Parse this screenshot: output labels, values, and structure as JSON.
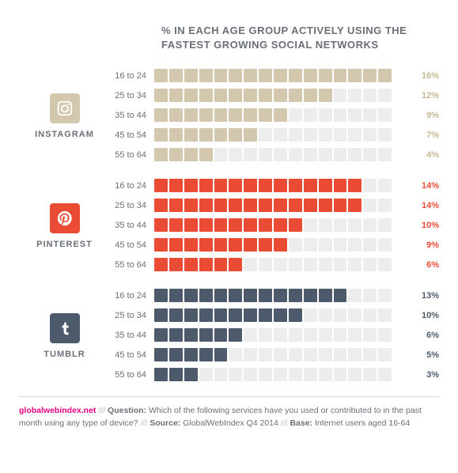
{
  "title": "% IN EACH AGE GROUP ACTIVELY USING THE FASTEST GROWING SOCIAL NETWORKS",
  "empty_color": "#eceded",
  "cells_per_row": 16,
  "networks": [
    {
      "id": "instagram",
      "name": "INSTAGRAM",
      "icon_bg": "#d3c8ae",
      "color": "#d3c8ae",
      "value_color": "#c5b892",
      "rows": [
        {
          "age": "16 to 24",
          "pct": 16,
          "filled": 16
        },
        {
          "age": "25 to 34",
          "pct": 12,
          "filled": 12
        },
        {
          "age": "35 to 44",
          "pct": 9,
          "filled": 9
        },
        {
          "age": "45 to 54",
          "pct": 7,
          "filled": 7
        },
        {
          "age": "55 to 64",
          "pct": 4,
          "filled": 4
        }
      ]
    },
    {
      "id": "pinterest",
      "name": "PINTEREST",
      "icon_bg": "#e94b35",
      "color": "#e94b35",
      "value_color": "#e94b35",
      "rows": [
        {
          "age": "16 to 24",
          "pct": 14,
          "filled": 14
        },
        {
          "age": "25 to 34",
          "pct": 14,
          "filled": 14
        },
        {
          "age": "35 to 44",
          "pct": 10,
          "filled": 10
        },
        {
          "age": "45 to 54",
          "pct": 9,
          "filled": 9
        },
        {
          "age": "55 to 64",
          "pct": 6,
          "filled": 6
        }
      ]
    },
    {
      "id": "tumblr",
      "name": "TUMBLR",
      "icon_bg": "#4d5a6b",
      "color": "#4d5a6b",
      "value_color": "#4d5a6b",
      "rows": [
        {
          "age": "16 to 24",
          "pct": 13,
          "filled": 13
        },
        {
          "age": "25 to 34",
          "pct": 10,
          "filled": 10
        },
        {
          "age": "35 to 44",
          "pct": 6,
          "filled": 6
        },
        {
          "age": "45 to 54",
          "pct": 5,
          "filled": 5
        },
        {
          "age": "55 to 64",
          "pct": 3,
          "filled": 3
        }
      ]
    }
  ],
  "footer": {
    "site": "globalwebindex.net",
    "sep": " /// ",
    "question_label": "Question:",
    "question": " Which of the following services have you used or contributed to in the past month using any type of device? ",
    "source_label": "Source:",
    "source": " GlobalWebIndex Q4 2014 ",
    "base_label": "Base:",
    "base": " Internet users aged 16-64"
  }
}
